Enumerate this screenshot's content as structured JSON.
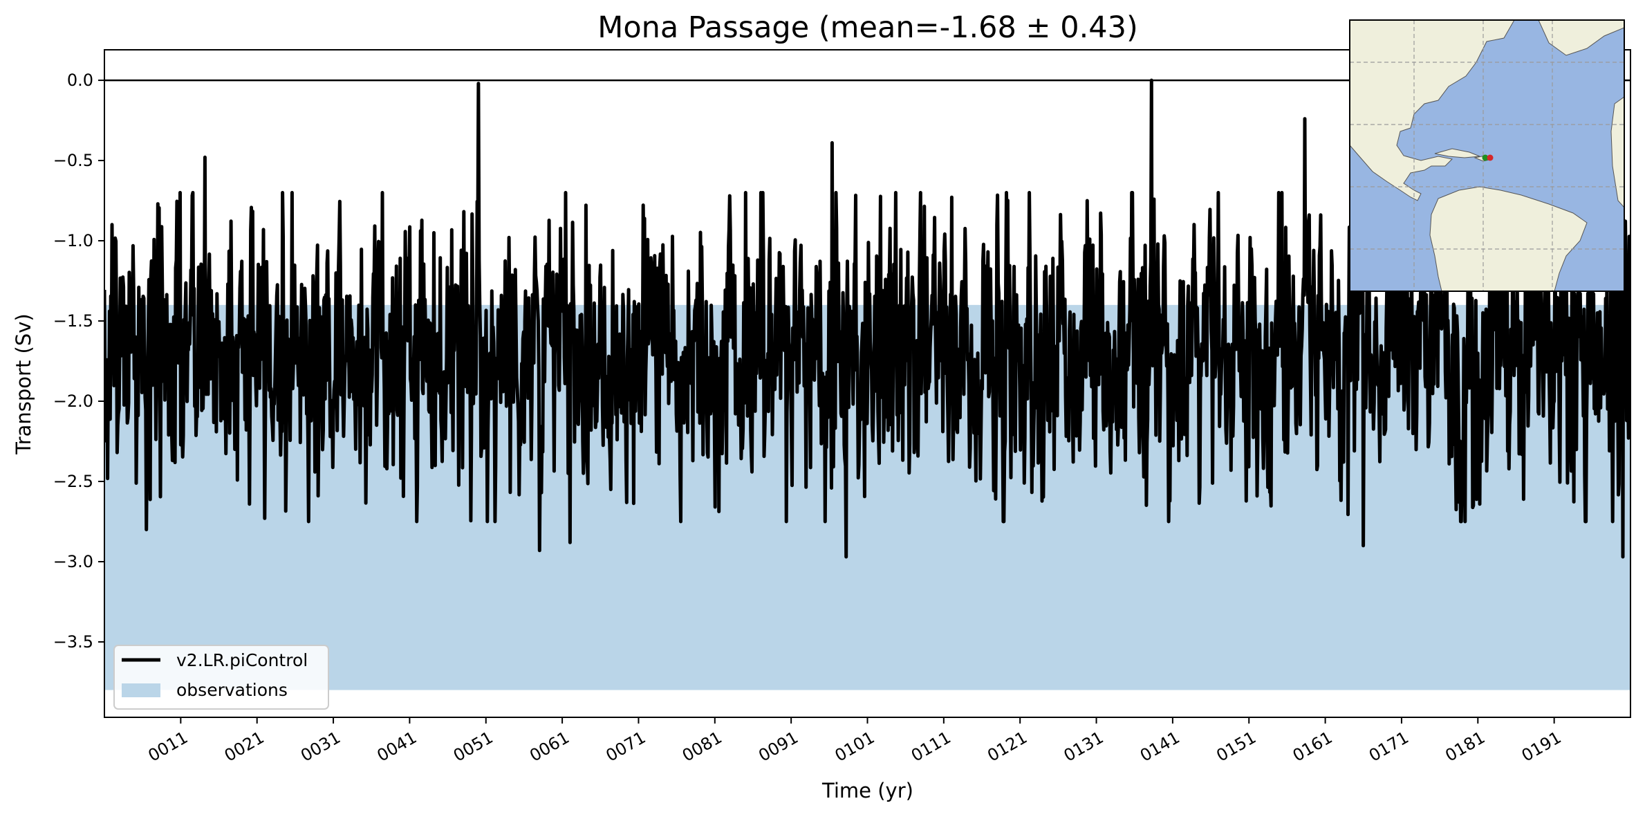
{
  "chart_data": {
    "type": "line",
    "title": "Mona Passage (mean=-1.68 ± 0.43)",
    "xlabel": "Time (yr)",
    "ylabel": "Transport (Sv)",
    "xlim": [
      1,
      201
    ],
    "ylim": [
      -3.97,
      0.19
    ],
    "y_ticks": [
      0.0,
      -0.5,
      -1.0,
      -1.5,
      -2.0,
      -2.5,
      -3.0,
      -3.5
    ],
    "y_tick_labels": [
      "0.0",
      "−0.5",
      "−1.0",
      "−1.5",
      "−2.0",
      "−2.5",
      "−3.0",
      "−3.5"
    ],
    "x_ticks": [
      11,
      21,
      31,
      41,
      51,
      61,
      71,
      81,
      91,
      101,
      111,
      121,
      131,
      141,
      151,
      161,
      171,
      181,
      191
    ],
    "x_tick_labels": [
      "0011",
      "0021",
      "0031",
      "0041",
      "0051",
      "0061",
      "0071",
      "0081",
      "0091",
      "0101",
      "0111",
      "0121",
      "0131",
      "0141",
      "0151",
      "0161",
      "0171",
      "0181",
      "0191"
    ],
    "grid": false,
    "legend_placement": "lower-left",
    "zero_line": 0.0,
    "observations_band": {
      "name": "observations",
      "min": -3.8,
      "max": -1.4,
      "color": "#bad5e8"
    },
    "series": [
      {
        "name": "v2.LR.piControl",
        "color": "#000000",
        "mean": -1.68,
        "std": 0.43,
        "monthly_points": 2400,
        "highlighted_points": [
          {
            "x": 2.0,
            "y": -0.9
          },
          {
            "x": 6.5,
            "y": -2.8
          },
          {
            "x": 8.0,
            "y": -0.77
          },
          {
            "x": 14.2,
            "y": -0.48
          },
          {
            "x": 50.0,
            "y": -0.02
          },
          {
            "x": 58.0,
            "y": -2.93
          },
          {
            "x": 62.0,
            "y": -2.88
          },
          {
            "x": 96.4,
            "y": -0.39
          },
          {
            "x": 98.2,
            "y": -2.97
          },
          {
            "x": 138.2,
            "y": 0.0
          },
          {
            "x": 158.3,
            "y": -0.24
          },
          {
            "x": 166.0,
            "y": -2.9
          },
          {
            "x": 200.0,
            "y": -2.97
          }
        ]
      }
    ],
    "inset_map": {
      "land_color": "#efefdc",
      "ocean_color": "#98b6e2",
      "station_markers": [
        "green",
        "red"
      ]
    }
  }
}
